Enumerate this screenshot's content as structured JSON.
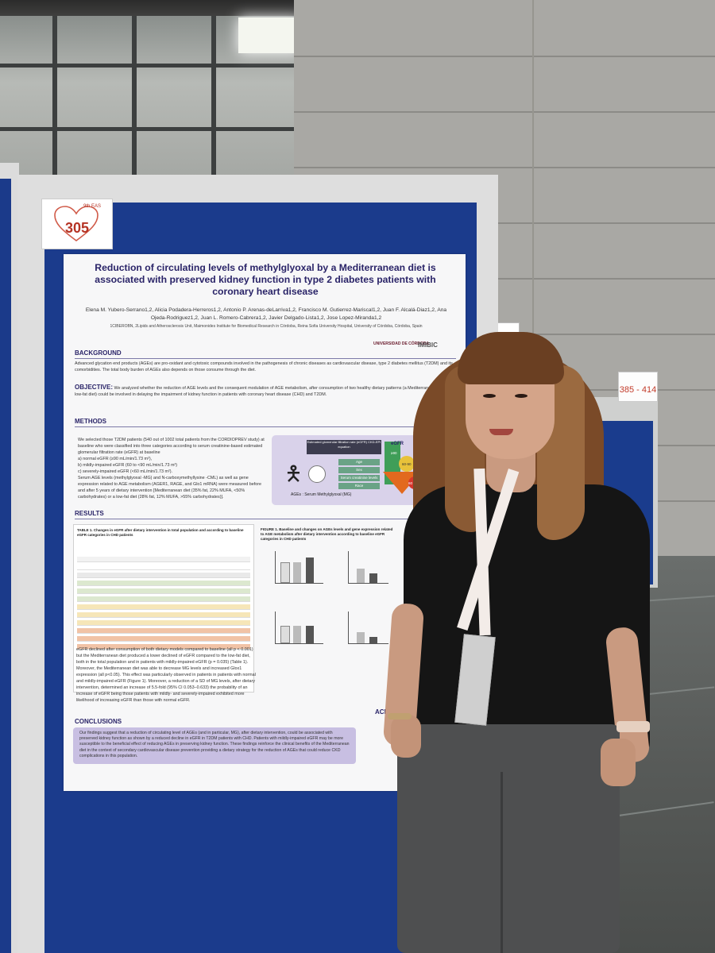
{
  "scene": {
    "description_colors": {
      "board_blue": "#1b3b8c",
      "poster_title": "#2a2468",
      "sign_red": "#b53324"
    }
  },
  "board_sign": {
    "number": "305",
    "label": "9th EAS"
  },
  "right_sign": {
    "range": "385 - 414"
  },
  "poster": {
    "title": "Reduction of circulating levels of methylglyoxal by a Mediterranean diet is associated with preserved kidney function in type 2 diabetes patients with coronary heart disease",
    "authors": "Elena M. Yubero-Serrano1,2, Alicia Podadera-Herreros1,2, Antonio P. Arenas-deLarriva1,2, Francisco M. Gutierrez-Mariscal1,2, Juan F. Alcalá-Diaz1,2, Ana Ojeda-Rodriguez1,2, Juan L. Romero-Cabrera1,2, Javier Delgado-Lista1,2, Jose Lopez-Miranda1,2",
    "affiliation": "1CIBEROBN, 2Lipids and Atherosclerosis Unit, Maimonides Institute for Biomedical Research in Córdoba, Reina Sofia University Hospital, University of Córdoba, Córdoba, Spain",
    "logos": {
      "uco": "UNIVERSIDAD DE CÓRDOBA",
      "imibic": "IMIBIC"
    },
    "background": {
      "heading": "BACKGROUND",
      "text": "Advanced glycation end products (AGEs) are pro-oxidant and cytotoxic compounds involved in the pathogenesis of chronic diseases as cardiovascular disease, type 2 diabetes mellitus (T2DM) and its comorbidities. The total body burden of AGEs also depends on those consume through the diet."
    },
    "objective": {
      "heading": "OBJECTIVE:",
      "text": "We analyzed whether the reduction of AGE levels and the consequent modulation of AGE metabolism, after consumption of two healthy dietary patterns (a Mediterranean diet or a low-fat diet) could be involved in delaying the impairment of kidney function in patients with coronary heart disease (CHD) and T2DM."
    },
    "methods": {
      "heading": "METHODS",
      "text": "We selected those T2DM patients (540 out of 1002 total patients from the CORDIOPREV study) at baseline who were classified into three categories according to serum creatinine-based estimated glomerular filtration rate (eGFR) at baseline",
      "items": [
        "a) normal eGFR (≥90 mL/min/1.73 m²),",
        "b) mildly-impaired eGFR (60 to <90 mL/min/1.73 m²)",
        "c) severely-impaired eGFR (<60 mL/min/1.73 m²)."
      ],
      "text2": "Serum AGE levels (methylglyoxal -MG) and N-carboxymethyllysine -CML) as well as gene expression related to AGE metabolism (AGER1, RAGE, and Glo1 mRNA) were measured before and after 5 years of dietary intervention [Mediterranean diet (35% fat, 22% MUFA, <50% carbohydrates) or a low-fat diet (28% fat, 12% MUFA, >55% carbohydrates)].",
      "figure": {
        "header": "Estimated glomerular filtration rate (eGFR) CKD-EPI equation",
        "pills": [
          "Age",
          "Sex",
          "Serum creatinine levels",
          "Race"
        ],
        "caption": "AGEs : Serum Methylglyoxal (MG)",
        "egfr_label": "eGFR",
        "levels": [
          "≥90",
          "60-90",
          "60 <"
        ]
      }
    },
    "results": {
      "heading": "RESULTS",
      "table_caption": "TABLE 1. Changes in eGFR after dietary intervention in total population and according to baseline eGFR categories in CHD patients",
      "figure_caption": "FIGURE 1. Baseline and changes on AGEs levels and gene expression related to AGE metabolism after dietary intervention according to baseline eGFR categories in CHD patients",
      "text": "eGFR declined after consumption of both dietary models compared to baseline (all p < 0.001) but the Mediterranean diet produced a lower declined of eGFR compared to the low-fat diet, both in the total population and in patients with mildly-impaired eGFR (p = 0.035) (Table 1). Moreover, the Mediterranean diet was able to decrease MG levels and increased Glox1 expression (all p<0.05). This effect was particularly observed in patients in patients with normal and mildly-impaired eGFR (Figure 1). Moreover, a reduction of a SD of MG levels, after dietary intervention, determined an increase of 5.5-fold (95% CI 0.053–0.633) the probability of an increase of eGFR being those patients with mildly- and severely-impaired exhibited more likelihood of increasing eGFR than those with normal eGFR."
    },
    "conclusions": {
      "heading": "CONCLUSIONS",
      "text": "Our findings suggest that a reduction of circulating level of AGEs (and in particular, MG), after dietary intervention, could be associated with preserved kidney function as shown by a reduced decline in eGFR in T2DM patients with CHD. Patients with mildly-impaired eGFR may be more susceptible to the beneficial effect of reducing AGEs in preserving kidney function. These findings reinforce the clinical benefits of the Mediterranean diet in the context of secondary cardiovascular disease prevention providing a dietary strategy for the reduction of AGEs that could reduce CKD complications in this population."
    },
    "ack": "ACKN"
  }
}
